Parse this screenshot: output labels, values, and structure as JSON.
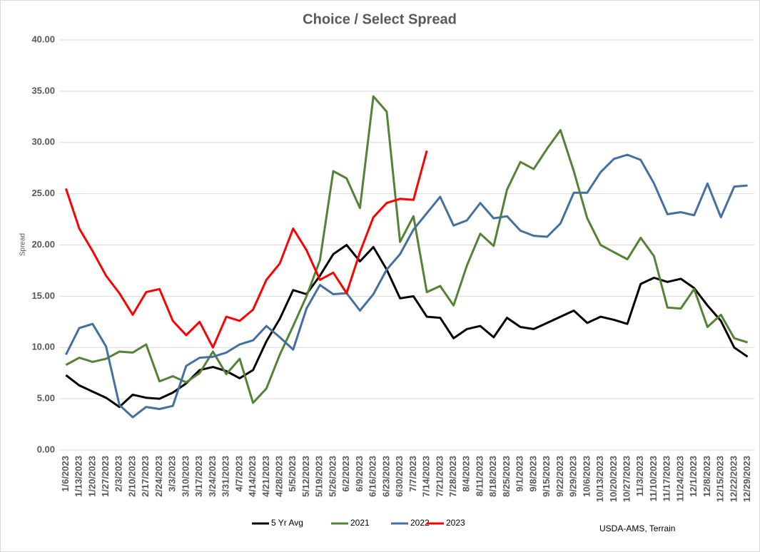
{
  "chart_data": {
    "type": "line",
    "title": "Choice / Select Spread",
    "y_label": "Spread",
    "source": "USDA-AMS, Terrain",
    "categories": [
      "1/6/2023",
      "1/13/2023",
      "1/20/2023",
      "1/27/2023",
      "2/3/2023",
      "2/10/2023",
      "2/17/2023",
      "2/24/2023",
      "3/3/2023",
      "3/10/2023",
      "3/17/2023",
      "3/24/2023",
      "3/31/2023",
      "4/7/2023",
      "4/14/2023",
      "4/21/2023",
      "4/28/2023",
      "5/5/2023",
      "5/12/2023",
      "5/19/2023",
      "5/26/2023",
      "6/2/2023",
      "6/9/2023",
      "6/16/2023",
      "6/23/2023",
      "6/30/2023",
      "7/7/2023",
      "7/14/2023",
      "7/21/2023",
      "7/28/2023",
      "8/4/2023",
      "8/11/2023",
      "8/18/2023",
      "8/25/2023",
      "9/1/2023",
      "9/8/2023",
      "9/15/2023",
      "9/22/2023",
      "9/29/2023",
      "10/6/2023",
      "10/13/2023",
      "10/20/2023",
      "10/27/2023",
      "11/3/2023",
      "11/10/2023",
      "11/17/2023",
      "11/24/2023",
      "12/1/2023",
      "12/8/2023",
      "12/15/2023",
      "12/22/2023",
      "12/29/2023"
    ],
    "series": [
      {
        "name": "5 Yr Avg",
        "color": "#000000",
        "values": [
          7.3,
          6.3,
          5.7,
          5.1,
          4.2,
          5.4,
          5.1,
          5.0,
          5.6,
          6.5,
          7.8,
          8.1,
          7.7,
          7.0,
          7.8,
          10.6,
          12.8,
          15.6,
          15.2,
          17.0,
          19.1,
          20.0,
          18.4,
          19.8,
          17.6,
          14.8,
          15.0,
          13.0,
          12.9,
          10.9,
          11.8,
          12.1,
          11.0,
          12.9,
          12.0,
          11.8,
          12.4,
          13.0,
          13.6,
          12.4,
          13.0,
          12.7,
          12.3,
          16.2,
          16.8,
          16.4,
          16.7,
          15.8,
          14.1,
          12.6,
          10.0,
          9.1
        ]
      },
      {
        "name": "2021",
        "color": "#548235",
        "values": [
          8.3,
          9.0,
          8.6,
          8.9,
          9.6,
          9.5,
          10.3,
          6.7,
          7.2,
          6.6,
          7.5,
          9.6,
          7.4,
          8.9,
          4.6,
          6.0,
          9.3,
          12.1,
          15.0,
          18.5,
          27.2,
          26.5,
          23.6,
          34.5,
          33.0,
          20.3,
          22.8,
          15.4,
          16.0,
          14.1,
          18.0,
          21.1,
          19.9,
          25.4,
          28.1,
          27.4,
          29.4,
          31.2,
          27.2,
          22.6,
          20.0,
          19.3,
          18.6,
          20.7,
          18.9,
          13.9,
          13.8,
          15.7,
          12.0,
          13.2,
          10.9,
          10.5
        ]
      },
      {
        "name": "2022",
        "color": "#44709d",
        "values": [
          9.3,
          11.9,
          12.3,
          10.1,
          4.4,
          3.2,
          4.2,
          4.0,
          4.3,
          8.2,
          9.0,
          9.1,
          9.5,
          10.3,
          10.7,
          12.1,
          11.0,
          9.8,
          13.8,
          16.1,
          15.2,
          15.3,
          13.6,
          15.2,
          17.6,
          19.1,
          21.5,
          23.1,
          24.7,
          21.9,
          22.4,
          24.1,
          22.6,
          22.8,
          21.4,
          20.9,
          20.8,
          22.1,
          25.1,
          25.1,
          27.1,
          28.4,
          28.8,
          28.3,
          26.0,
          23.0,
          23.2,
          22.9,
          26.0,
          22.7,
          25.7,
          25.8
        ]
      },
      {
        "name": "2023",
        "color": "#ff0000",
        "values": [
          25.5,
          21.6,
          19.4,
          17.0,
          15.3,
          13.2,
          15.4,
          15.7,
          12.6,
          11.2,
          12.5,
          10.0,
          13.0,
          12.6,
          13.7,
          16.6,
          18.2,
          21.6,
          19.5,
          16.6,
          17.3,
          15.3,
          19.3,
          22.7,
          24.1,
          24.5,
          24.4,
          29.2,
          null,
          null,
          null,
          null,
          null,
          null,
          null,
          null,
          null,
          null,
          null,
          null,
          null,
          null,
          null,
          null,
          null,
          null,
          null,
          null,
          null,
          null,
          null,
          null
        ]
      }
    ],
    "ylim": [
      0,
      40
    ],
    "yticks": [
      {
        "value": 0,
        "label": "0.00"
      },
      {
        "value": 5,
        "label": "5.00"
      },
      {
        "value": 10,
        "label": "10.00"
      },
      {
        "value": 15,
        "label": "15.00"
      },
      {
        "value": 20,
        "label": "20.00"
      },
      {
        "value": 25,
        "label": "25.00"
      },
      {
        "value": 30,
        "label": "30.00"
      },
      {
        "value": 35,
        "label": "35.00"
      },
      {
        "value": 40,
        "label": "40.00"
      }
    ],
    "grid": true,
    "legend": "bottom"
  }
}
